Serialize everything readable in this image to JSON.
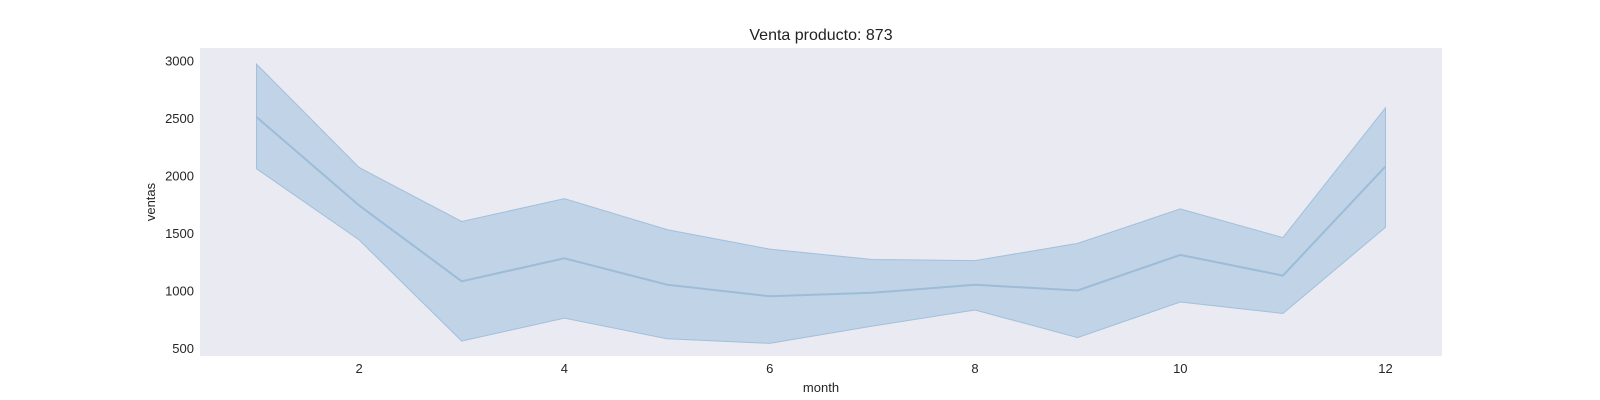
{
  "chart_data": {
    "type": "line",
    "title": "Venta producto: 873",
    "xlabel": "month",
    "ylabel": "ventas",
    "xlim": [
      0.45,
      12.55
    ],
    "ylim": [
      430,
      3110
    ],
    "x_ticks": [
      2,
      4,
      6,
      8,
      10,
      12
    ],
    "y_ticks": [
      500,
      1000,
      1500,
      2000,
      2500,
      3000
    ],
    "grid": false,
    "colors": {
      "line": "#9cbcd8",
      "band": "#b3cbe1",
      "plot_background": "#eaeaf2"
    },
    "series": [
      {
        "x": [
          1,
          2,
          3,
          4,
          5,
          6,
          7,
          8,
          9,
          10,
          11,
          12
        ],
        "values": [
          2510,
          1740,
          1080,
          1280,
          1050,
          950,
          980,
          1050,
          1000,
          1310,
          1130,
          2080
        ],
        "ci_upper": [
          2970,
          2070,
          1600,
          1800,
          1530,
          1360,
          1270,
          1260,
          1410,
          1710,
          1460,
          2590
        ],
        "ci_lower": [
          2060,
          1440,
          560,
          760,
          580,
          540,
          690,
          830,
          590,
          900,
          800,
          1550
        ]
      }
    ]
  }
}
